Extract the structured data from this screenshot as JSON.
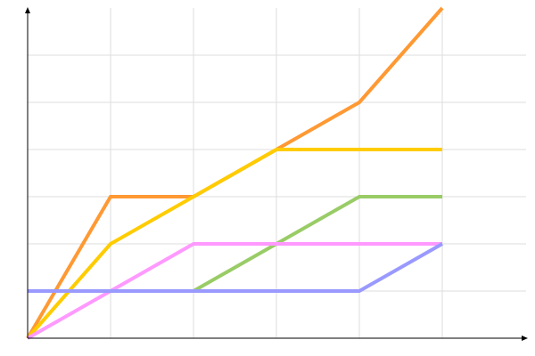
{
  "chart_data": {
    "type": "line",
    "title": "",
    "xlabel": "",
    "ylabel": "",
    "xlim": [
      0,
      6
    ],
    "ylim": [
      0,
      7
    ],
    "grid": true,
    "legend": "none",
    "series": [
      {
        "color": "#ff9933",
        "points": [
          [
            0,
            0
          ],
          [
            1,
            3
          ],
          [
            2,
            3
          ],
          [
            3,
            4
          ],
          [
            4,
            5
          ],
          [
            5,
            7
          ]
        ]
      },
      {
        "color": "#ffcc00",
        "points": [
          [
            0,
            0
          ],
          [
            1,
            2
          ],
          [
            2,
            3
          ],
          [
            3,
            4
          ],
          [
            4,
            4
          ],
          [
            5,
            4
          ]
        ]
      },
      {
        "color": "#99cc66",
        "points": [
          [
            2,
            1
          ],
          [
            3,
            2
          ],
          [
            4,
            3
          ],
          [
            5,
            3
          ]
        ]
      },
      {
        "color": "#ff99ff",
        "points": [
          [
            0,
            0
          ],
          [
            1,
            1
          ],
          [
            2,
            2
          ],
          [
            3,
            2
          ],
          [
            4,
            2
          ],
          [
            5,
            2
          ]
        ]
      },
      {
        "color": "#9999ff",
        "points": [
          [
            0,
            1
          ],
          [
            1,
            1
          ],
          [
            2,
            1
          ],
          [
            3,
            1
          ],
          [
            4,
            1
          ],
          [
            5,
            2
          ]
        ]
      }
    ]
  }
}
